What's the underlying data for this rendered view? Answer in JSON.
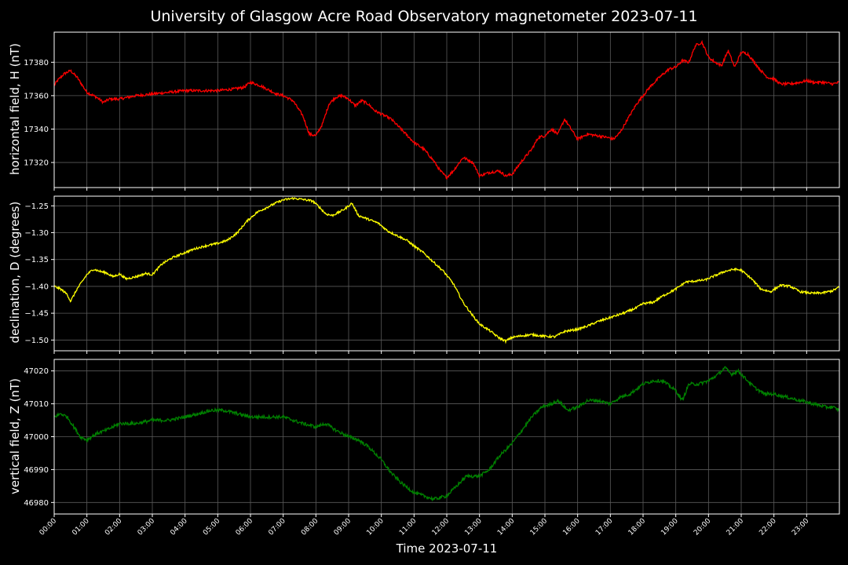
{
  "chart_data": {
    "type": "line",
    "title": "University of Glasgow Acre Road Observatory magnetometer 2023-07-11",
    "xlabel": "Time 2023-07-11",
    "x_ticks": [
      "00:00",
      "01:00",
      "02:00",
      "03:00",
      "04:00",
      "05:00",
      "06:00",
      "07:00",
      "08:00",
      "09:00",
      "10:00",
      "11:00",
      "12:00",
      "13:00",
      "14:00",
      "15:00",
      "16:00",
      "17:00",
      "18:00",
      "19:00",
      "20:00",
      "21:00",
      "22:00",
      "23:00"
    ],
    "xlim_hours": [
      0,
      24
    ],
    "grid": true,
    "panels": [
      {
        "ylabel": "horizontal field, H (nT)",
        "color": "#ff0000",
        "ylim": [
          17305,
          17398
        ],
        "yticks": [
          17320,
          17340,
          17360,
          17380
        ],
        "noise": 0.8,
        "series": {
          "name": "",
          "x_hours": [
            0,
            0.1,
            0.3,
            0.5,
            0.7,
            1.0,
            1.3,
            1.5,
            1.7,
            2.0,
            2.5,
            3.0,
            3.5,
            4.0,
            4.5,
            5.0,
            5.5,
            5.8,
            6.0,
            6.3,
            6.5,
            6.8,
            7.0,
            7.3,
            7.6,
            7.8,
            8.0,
            8.2,
            8.4,
            8.6,
            8.8,
            9.0,
            9.2,
            9.4,
            9.6,
            9.8,
            10.0,
            10.3,
            10.6,
            11.0,
            11.3,
            11.6,
            11.8,
            12.0,
            12.2,
            12.5,
            12.8,
            13.0,
            13.3,
            13.6,
            13.8,
            14.0,
            14.3,
            14.6,
            14.8,
            15.0,
            15.2,
            15.4,
            15.6,
            15.8,
            16.0,
            16.3,
            16.6,
            16.9,
            17.1,
            17.3,
            17.5,
            17.8,
            18.0,
            18.2,
            18.5,
            18.8,
            19.0,
            19.2,
            19.4,
            19.6,
            19.8,
            20.0,
            20.2,
            20.4,
            20.6,
            20.8,
            21.0,
            21.2,
            21.4,
            21.6,
            21.8,
            22.0,
            22.2,
            22.5,
            22.8,
            23.0,
            23.2,
            23.5,
            23.8,
            24.0
          ],
          "values": [
            17366,
            17369,
            17373,
            17375,
            17371,
            17362,
            17359,
            17356,
            17358,
            17358,
            17360,
            17361,
            17362,
            17363,
            17363,
            17363,
            17364,
            17365,
            17368,
            17366,
            17364,
            17361,
            17360,
            17357,
            17348,
            17337,
            17336,
            17343,
            17355,
            17359,
            17360,
            17358,
            17354,
            17357,
            17355,
            17351,
            17349,
            17346,
            17340,
            17332,
            17328,
            17321,
            17315,
            17311,
            17315,
            17323,
            17320,
            17312,
            17314,
            17315,
            17312,
            17313,
            17321,
            17328,
            17335,
            17336,
            17340,
            17337,
            17346,
            17340,
            17334,
            17337,
            17336,
            17335,
            17334,
            17338,
            17345,
            17355,
            17360,
            17365,
            17371,
            17376,
            17377,
            17381,
            17380,
            17390,
            17392,
            17383,
            17380,
            17378,
            17387,
            17377,
            17386,
            17385,
            17380,
            17375,
            17371,
            17370,
            17367,
            17367,
            17368,
            17369,
            17368,
            17368,
            17367,
            17368
          ]
        }
      },
      {
        "ylabel": "declination, D (degrees)",
        "color": "#ffff00",
        "ylim": [
          -1.52,
          -1.232
        ],
        "yticks": [
          -1.25,
          -1.3,
          -1.35,
          -1.4,
          -1.45,
          -1.5
        ],
        "noise": 0.002,
        "series": {
          "name": "",
          "x_hours": [
            0,
            0.2,
            0.4,
            0.5,
            0.7,
            1.0,
            1.2,
            1.4,
            1.6,
            1.8,
            2.0,
            2.2,
            2.5,
            2.8,
            3.0,
            3.3,
            3.6,
            4.0,
            4.3,
            4.6,
            5.0,
            5.3,
            5.6,
            5.9,
            6.2,
            6.5,
            6.8,
            7.0,
            7.3,
            7.6,
            7.9,
            8.1,
            8.3,
            8.5,
            8.7,
            8.9,
            9.1,
            9.3,
            9.6,
            9.9,
            10.2,
            10.5,
            10.8,
            11.0,
            11.3,
            11.6,
            11.9,
            12.2,
            12.5,
            12.8,
            13.0,
            13.3,
            13.6,
            13.8,
            14.0,
            14.3,
            14.6,
            15.0,
            15.3,
            15.6,
            16.0,
            16.3,
            16.6,
            17.0,
            17.4,
            17.8,
            18.0,
            18.3,
            18.6,
            19.0,
            19.3,
            19.6,
            19.9,
            20.2,
            20.5,
            20.8,
            21.0,
            21.3,
            21.6,
            21.9,
            22.2,
            22.5,
            22.8,
            23.2,
            23.5,
            23.8,
            24.0
          ],
          "values": [
            -1.4,
            -1.405,
            -1.415,
            -1.428,
            -1.405,
            -1.378,
            -1.368,
            -1.372,
            -1.375,
            -1.382,
            -1.377,
            -1.386,
            -1.382,
            -1.376,
            -1.378,
            -1.358,
            -1.347,
            -1.337,
            -1.33,
            -1.325,
            -1.32,
            -1.314,
            -1.3,
            -1.278,
            -1.262,
            -1.253,
            -1.244,
            -1.239,
            -1.236,
            -1.238,
            -1.241,
            -1.252,
            -1.265,
            -1.268,
            -1.262,
            -1.255,
            -1.245,
            -1.268,
            -1.275,
            -1.282,
            -1.297,
            -1.306,
            -1.315,
            -1.325,
            -1.338,
            -1.355,
            -1.372,
            -1.395,
            -1.43,
            -1.455,
            -1.47,
            -1.482,
            -1.496,
            -1.502,
            -1.495,
            -1.492,
            -1.49,
            -1.493,
            -1.494,
            -1.484,
            -1.48,
            -1.474,
            -1.466,
            -1.458,
            -1.45,
            -1.44,
            -1.432,
            -1.43,
            -1.418,
            -1.405,
            -1.392,
            -1.39,
            -1.388,
            -1.38,
            -1.372,
            -1.368,
            -1.37,
            -1.385,
            -1.405,
            -1.41,
            -1.398,
            -1.4,
            -1.41,
            -1.413,
            -1.412,
            -1.408,
            -1.401
          ]
        }
      },
      {
        "ylabel": "vertical field, Z (nT)",
        "color": "#008000",
        "ylim": [
          46976.5,
          47023.5
        ],
        "yticks": [
          46980,
          46990,
          47000,
          47010,
          47020
        ],
        "noise": 0.5,
        "series": {
          "name": "",
          "x_hours": [
            0,
            0.2,
            0.4,
            0.6,
            0.8,
            1.0,
            1.3,
            1.6,
            2.0,
            2.5,
            3.0,
            3.5,
            4.0,
            4.4,
            4.8,
            5.2,
            5.6,
            6.0,
            6.5,
            7.0,
            7.3,
            7.6,
            8.0,
            8.3,
            8.6,
            9.0,
            9.3,
            9.6,
            10.0,
            10.3,
            10.6,
            11.0,
            11.3,
            11.6,
            12.0,
            12.3,
            12.6,
            13.0,
            13.3,
            13.6,
            14.0,
            14.3,
            14.6,
            14.9,
            15.2,
            15.4,
            15.7,
            16.0,
            16.3,
            16.6,
            17.0,
            17.3,
            17.6,
            18.0,
            18.3,
            18.6,
            19.0,
            19.2,
            19.4,
            19.7,
            20.0,
            20.3,
            20.5,
            20.7,
            20.9,
            21.1,
            21.4,
            21.7,
            22.0,
            22.4,
            22.8,
            23.2,
            23.6,
            23.8,
            24.0
          ],
          "values": [
            47006,
            47007,
            47006,
            47003,
            47000,
            46999,
            47001,
            47002,
            47004,
            47004,
            47005,
            47005,
            47006,
            47007,
            47008,
            47008,
            47007,
            47006,
            47006,
            47006,
            47005,
            47004,
            47003,
            47004,
            47002,
            47000,
            46999,
            46997,
            46993,
            46989,
            46986,
            46983,
            46982,
            46981,
            46982,
            46985,
            46988,
            46988,
            46990,
            46994,
            46998,
            47002,
            47006,
            47009,
            47010,
            47011,
            47008,
            47009,
            47011,
            47011,
            47010,
            47012,
            47013,
            47016,
            47017,
            47017,
            47014,
            47011,
            47016,
            47016,
            47017,
            47019,
            47021,
            47019,
            47020,
            47018,
            47015,
            47013,
            47013,
            47012,
            47011,
            47010,
            47009,
            47009,
            47008
          ]
        }
      }
    ]
  }
}
